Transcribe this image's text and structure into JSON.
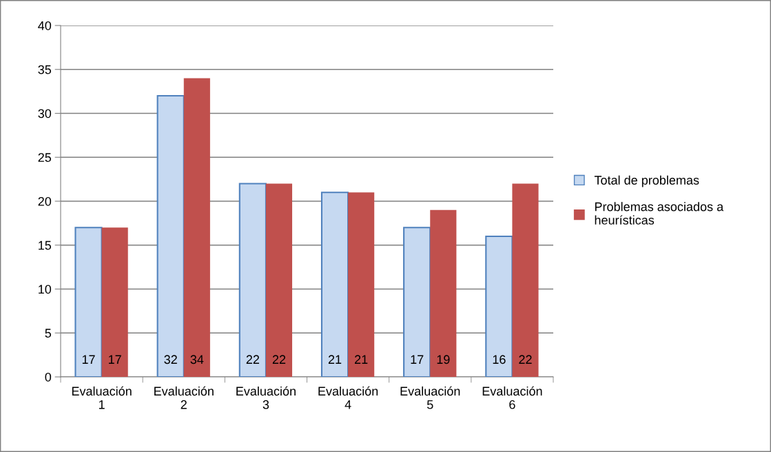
{
  "chart_data": {
    "type": "bar",
    "categories": [
      "Evaluación\n1",
      "Evaluación\n2",
      "Evaluación\n3",
      "Evaluación\n4",
      "Evaluación\n5",
      "Evaluación\n6"
    ],
    "series": [
      {
        "name": "Total de problemas",
        "color": "#c6d9f1",
        "values": [
          17,
          32,
          22,
          21,
          17,
          16
        ]
      },
      {
        "name": "Problemas asociados a\nheurísticas",
        "color": "#c0504d",
        "values": [
          17,
          34,
          22,
          21,
          19,
          22
        ]
      }
    ],
    "ylim": [
      0,
      40
    ],
    "yticks": [
      0,
      5,
      10,
      15,
      20,
      25,
      30,
      35,
      40
    ],
    "grid": "y",
    "legend": "right",
    "data_labels": true
  }
}
